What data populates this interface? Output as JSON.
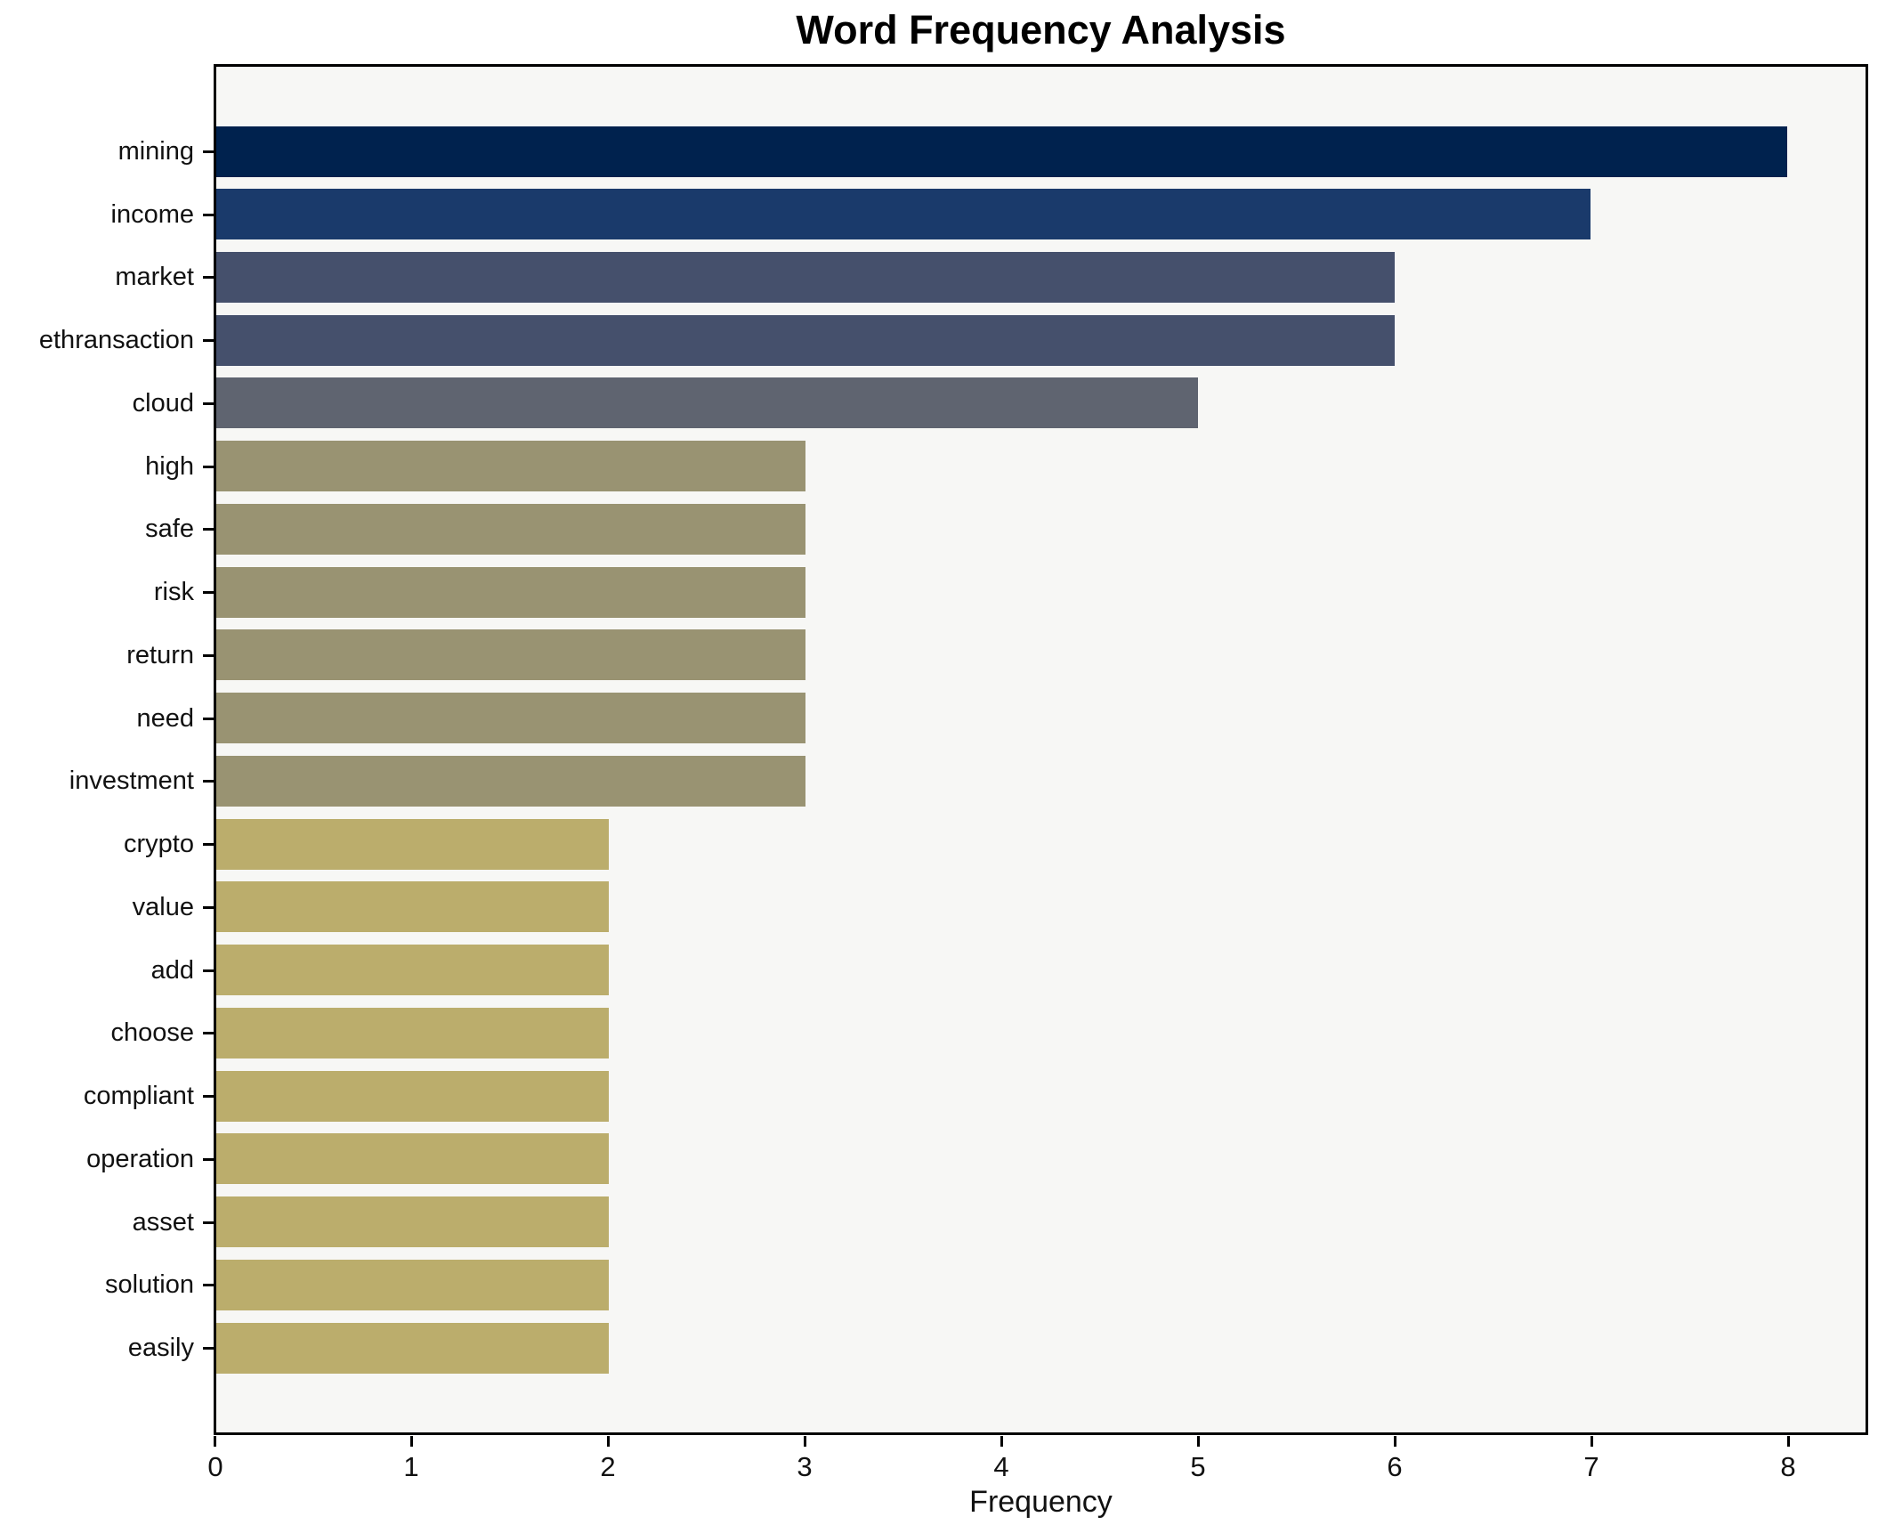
{
  "title": "Word Frequency Analysis",
  "xlabel": "Frequency",
  "chart_data": {
    "type": "bar",
    "orientation": "horizontal",
    "title": "Word Frequency Analysis",
    "xlabel": "Frequency",
    "ylabel": "",
    "grid": false,
    "legend": false,
    "xlim": [
      0,
      8.4
    ],
    "x_ticks": [
      "0",
      "1",
      "2",
      "3",
      "4",
      "5",
      "6",
      "7",
      "8"
    ],
    "plot_background": "#f7f7f5",
    "categories": [
      "mining",
      "income",
      "market",
      "ethransaction",
      "cloud",
      "high",
      "safe",
      "risk",
      "return",
      "need",
      "investment",
      "crypto",
      "value",
      "add",
      "choose",
      "compliant",
      "operation",
      "asset",
      "solution",
      "easily"
    ],
    "values": [
      8,
      7,
      6,
      6,
      5,
      3,
      3,
      3,
      3,
      3,
      3,
      2,
      2,
      2,
      2,
      2,
      2,
      2,
      2,
      2
    ],
    "bar_colors": [
      "#00224e",
      "#1a3a6b",
      "#45506c",
      "#45506c",
      "#5f6470",
      "#999372",
      "#999372",
      "#999372",
      "#999372",
      "#999372",
      "#999372",
      "#bbad6c",
      "#bbad6c",
      "#bbad6c",
      "#bbad6c",
      "#bbad6c",
      "#bbad6c",
      "#bbad6c",
      "#bbad6c",
      "#bbad6c"
    ]
  },
  "colors": {
    "axis": "#000000",
    "text": "#111111",
    "plot_background": "#f7f7f5",
    "figure_background": "#ffffff"
  }
}
